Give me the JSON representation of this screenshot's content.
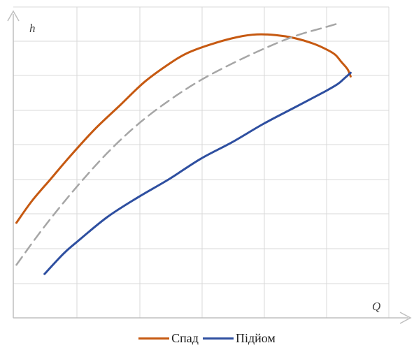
{
  "chart_data": {
    "type": "line",
    "xlabel": "Q",
    "ylabel": "h",
    "xlim": [
      0,
      6
    ],
    "ylim": [
      0,
      8.5
    ],
    "grid": true,
    "legend_position": "bottom",
    "series": [
      {
        "name": "Спад",
        "color": "#C65911",
        "x": [
          0.05,
          0.3,
          0.6,
          0.9,
          1.3,
          1.7,
          2.1,
          2.5,
          2.8,
          3.2,
          3.6,
          3.9,
          4.2,
          4.5,
          4.8,
          5.0,
          5.15,
          5.25,
          5.35,
          5.4
        ],
        "y": [
          2.6,
          3.2,
          3.8,
          4.4,
          5.15,
          5.8,
          6.45,
          6.95,
          7.25,
          7.5,
          7.68,
          7.75,
          7.73,
          7.65,
          7.5,
          7.35,
          7.2,
          7.0,
          6.8,
          6.6
        ]
      },
      {
        "name": "Підйом",
        "color": "#2E4FA0",
        "x": [
          0.5,
          0.8,
          1.0,
          1.5,
          2.0,
          2.5,
          3.0,
          3.5,
          4.0,
          4.5,
          5.0,
          5.2,
          5.3,
          5.4
        ],
        "y": [
          1.2,
          1.75,
          2.05,
          2.75,
          3.3,
          3.8,
          4.35,
          4.8,
          5.3,
          5.75,
          6.2,
          6.4,
          6.55,
          6.7
        ]
      },
      {
        "color": "#A6A6A6",
        "style": "dashed",
        "x": [
          0.05,
          0.5,
          1.0,
          1.5,
          2.0,
          2.5,
          3.0,
          3.5,
          4.0,
          4.5,
          5.0,
          5.2
        ],
        "y": [
          1.45,
          2.5,
          3.55,
          4.5,
          5.3,
          5.95,
          6.5,
          6.95,
          7.35,
          7.7,
          7.95,
          8.05
        ]
      }
    ]
  }
}
